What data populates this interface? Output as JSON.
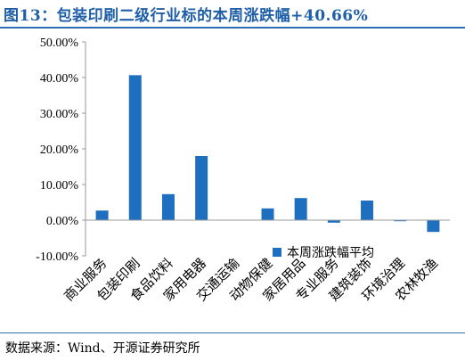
{
  "title": "图13：包装印刷二级行业标的本周涨跌幅+40.66%",
  "source": "数据来源：Wind、开源证券研究所",
  "colors": {
    "bar": "#1f6fc0",
    "title": "#1f5fa8",
    "axis": "#999999"
  },
  "chart_data": {
    "type": "bar",
    "title": "图13：包装印刷二级行业标的本周涨跌幅+40.66%",
    "categories": [
      "商业服务",
      "包装印刷",
      "食品饮料",
      "家用电器",
      "交通运输",
      "动物保健",
      "家居用品",
      "专业服务",
      "建筑装饰",
      "环境治理",
      "农林牧渔"
    ],
    "series": [
      {
        "name": "本周涨跌幅平均",
        "values": [
          2.7,
          40.66,
          7.3,
          18.0,
          0.0,
          3.3,
          6.2,
          -0.7,
          5.5,
          -0.3,
          -3.3
        ]
      }
    ],
    "ylim": [
      -10,
      50
    ],
    "yticks": [
      -10,
      0,
      10,
      20,
      30,
      40,
      50
    ],
    "ytick_labels": [
      "-10.00%",
      "0.00%",
      "10.00%",
      "20.00%",
      "30.00%",
      "40.00%",
      "50.00%"
    ],
    "xlabel": "",
    "ylabel": "",
    "legend_position": "bottom-right",
    "grid": false
  }
}
